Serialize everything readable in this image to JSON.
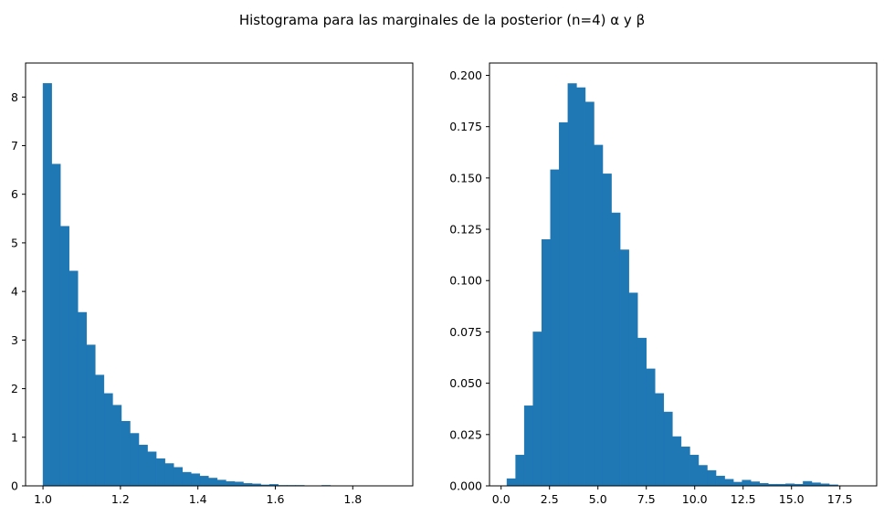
{
  "figure": {
    "title": "Histograma para las marginales de la posterior (n=4) α y β"
  },
  "chart_data": [
    {
      "type": "bar",
      "subtype": "histogram",
      "title": "",
      "xlabel": "",
      "ylabel": "",
      "xlim": [
        0.955,
        1.955
      ],
      "ylim": [
        0,
        8.7
      ],
      "xticks": [
        1.0,
        1.2,
        1.4,
        1.6,
        1.8
      ],
      "xtick_labels": [
        "1.0",
        "1.2",
        "1.4",
        "1.6",
        "1.8"
      ],
      "yticks": [
        0,
        1,
        2,
        3,
        4,
        5,
        6,
        7,
        8
      ],
      "ytick_labels": [
        "0",
        "1",
        "2",
        "3",
        "4",
        "5",
        "6",
        "7",
        "8"
      ],
      "bin_start": 1.0,
      "bin_width": 0.0225,
      "values": [
        8.28,
        6.62,
        5.34,
        4.42,
        3.57,
        2.9,
        2.28,
        1.9,
        1.66,
        1.33,
        1.08,
        0.84,
        0.7,
        0.56,
        0.46,
        0.38,
        0.28,
        0.25,
        0.2,
        0.16,
        0.12,
        0.09,
        0.08,
        0.05,
        0.04,
        0.02,
        0.03,
        0.01,
        0.01,
        0.01,
        0.0,
        0.0,
        0.01,
        0.0,
        0.0,
        0.0,
        0.0,
        0.0,
        0.0,
        0.0
      ],
      "color": "#1f77b4",
      "grid": false
    },
    {
      "type": "bar",
      "subtype": "histogram",
      "title": "",
      "xlabel": "",
      "ylabel": "",
      "xlim": [
        -0.6,
        19.4
      ],
      "ylim": [
        0,
        0.206
      ],
      "xticks": [
        0.0,
        2.5,
        5.0,
        7.5,
        10.0,
        12.5,
        15.0,
        17.5
      ],
      "xtick_labels": [
        "0.0",
        "2.5",
        "5.0",
        "7.5",
        "10.0",
        "12.5",
        "15.0",
        "17.5"
      ],
      "yticks": [
        0.0,
        0.025,
        0.05,
        0.075,
        0.1,
        0.125,
        0.15,
        0.175,
        0.2
      ],
      "ytick_labels": [
        "0.000",
        "0.025",
        "0.050",
        "0.075",
        "0.100",
        "0.125",
        "0.150",
        "0.175",
        "0.200"
      ],
      "bin_start": 0.3,
      "bin_width": 0.45,
      "values": [
        0.0035,
        0.015,
        0.039,
        0.075,
        0.12,
        0.154,
        0.177,
        0.196,
        0.194,
        0.187,
        0.166,
        0.152,
        0.133,
        0.115,
        0.094,
        0.072,
        0.057,
        0.045,
        0.036,
        0.024,
        0.019,
        0.015,
        0.01,
        0.0075,
        0.0048,
        0.0032,
        0.0018,
        0.0028,
        0.002,
        0.0012,
        0.0008,
        0.0008,
        0.001,
        0.0008,
        0.0022,
        0.0015,
        0.001,
        0.0005,
        0.0,
        0.0
      ],
      "color": "#1f77b4",
      "grid": false
    }
  ]
}
